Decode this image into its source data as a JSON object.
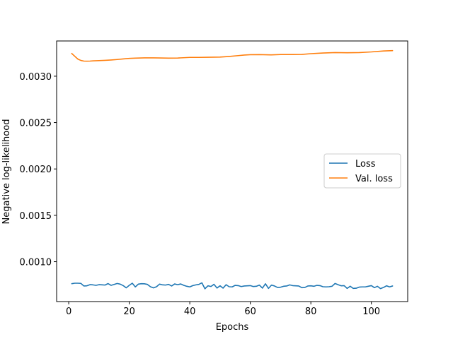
{
  "chart_data": {
    "type": "line",
    "xlabel": "Epochs",
    "ylabel": "Negative log-likelihood",
    "xlim": [
      -4,
      112
    ],
    "ylim": [
      0.00057,
      0.00338
    ],
    "x_ticks": [
      0,
      20,
      40,
      60,
      80,
      100
    ],
    "y_ticks": [
      0.001,
      0.0015,
      0.002,
      0.0025,
      0.003
    ],
    "x_tick_labels": [
      "0",
      "20",
      "40",
      "60",
      "80",
      "100"
    ],
    "y_tick_labels": [
      "0.0010",
      "0.0015",
      "0.0020",
      "0.0025",
      "0.0030"
    ],
    "grid": false,
    "legend": {
      "placement": "center-right"
    },
    "series": [
      {
        "name": "Loss",
        "color": "#1f77b4",
        "x": [
          1,
          2,
          3,
          4,
          5,
          6,
          7,
          8,
          9,
          10,
          11,
          12,
          13,
          14,
          15,
          16,
          17,
          18,
          19,
          20,
          21,
          22,
          23,
          24,
          25,
          26,
          27,
          28,
          29,
          30,
          31,
          32,
          33,
          34,
          35,
          36,
          37,
          38,
          39,
          40,
          41,
          42,
          43,
          44,
          45,
          46,
          47,
          48,
          49,
          50,
          51,
          52,
          53,
          54,
          55,
          56,
          57,
          58,
          59,
          60,
          61,
          62,
          63,
          64,
          65,
          66,
          67,
          68,
          69,
          70,
          71,
          72,
          73,
          74,
          75,
          76,
          77,
          78,
          79,
          80,
          81,
          82,
          83,
          84,
          85,
          86,
          87,
          88,
          89,
          90,
          91,
          92,
          93,
          94,
          95,
          96,
          97,
          98,
          99,
          100,
          101,
          102,
          103,
          104,
          105,
          106,
          107
        ],
        "values": [
          0.000763,
          0.000768,
          0.000768,
          0.000766,
          0.000738,
          0.00074,
          0.000752,
          0.00075,
          0.000745,
          0.000752,
          0.00075,
          0.000748,
          0.000764,
          0.000745,
          0.000755,
          0.000765,
          0.000758,
          0.000742,
          0.000718,
          0.000745,
          0.000768,
          0.000728,
          0.000758,
          0.000763,
          0.000762,
          0.000755,
          0.00073,
          0.000718,
          0.00073,
          0.000758,
          0.00075,
          0.000748,
          0.000755,
          0.000738,
          0.00076,
          0.000752,
          0.00076,
          0.000745,
          0.000735,
          0.000728,
          0.000742,
          0.00075,
          0.000755,
          0.000772,
          0.000708,
          0.00074,
          0.000733,
          0.000756,
          0.000716,
          0.00074,
          0.000715,
          0.000752,
          0.00073,
          0.000728,
          0.000745,
          0.000742,
          0.000732,
          0.000738,
          0.00074,
          0.000742,
          0.000732,
          0.000735,
          0.000748,
          0.000715,
          0.000762,
          0.000712,
          0.000748,
          0.000738,
          0.000722,
          0.000725,
          0.000735,
          0.000738,
          0.00075,
          0.000742,
          0.00074,
          0.000738,
          0.00072,
          0.000722,
          0.000738,
          0.00074,
          0.000735,
          0.000745,
          0.000742,
          0.00073,
          0.000728,
          0.00073,
          0.000735,
          0.000765,
          0.000752,
          0.00074,
          0.000742,
          0.000712,
          0.000735,
          0.000712,
          0.000714,
          0.000726,
          0.000728,
          0.000728,
          0.000735,
          0.000742,
          0.00072,
          0.000735,
          0.00071,
          0.000722,
          0.00074,
          0.000728,
          0.000738
        ]
      },
      {
        "name": "Val. loss",
        "color": "#ff7f0e",
        "x": [
          1,
          2,
          3,
          4,
          5,
          6,
          7,
          8,
          10,
          12,
          14,
          16,
          18,
          20,
          22,
          25,
          28,
          30,
          33,
          36,
          40,
          43,
          46,
          50,
          53,
          56,
          58,
          60,
          63,
          67,
          70,
          74,
          77,
          80,
          84,
          88,
          92,
          96,
          100,
          104,
          107
        ],
        "values": [
          0.003245,
          0.003215,
          0.003185,
          0.00317,
          0.003163,
          0.003162,
          0.003163,
          0.003165,
          0.003168,
          0.003171,
          0.003175,
          0.00318,
          0.003186,
          0.003192,
          0.003195,
          0.003198,
          0.003198,
          0.003197,
          0.003195,
          0.003196,
          0.003203,
          0.003203,
          0.003204,
          0.003206,
          0.003213,
          0.003222,
          0.003228,
          0.003232,
          0.003233,
          0.00323,
          0.003234,
          0.003234,
          0.003235,
          0.003243,
          0.00325,
          0.003255,
          0.003253,
          0.003255,
          0.003262,
          0.003272,
          0.003276
        ]
      }
    ]
  }
}
